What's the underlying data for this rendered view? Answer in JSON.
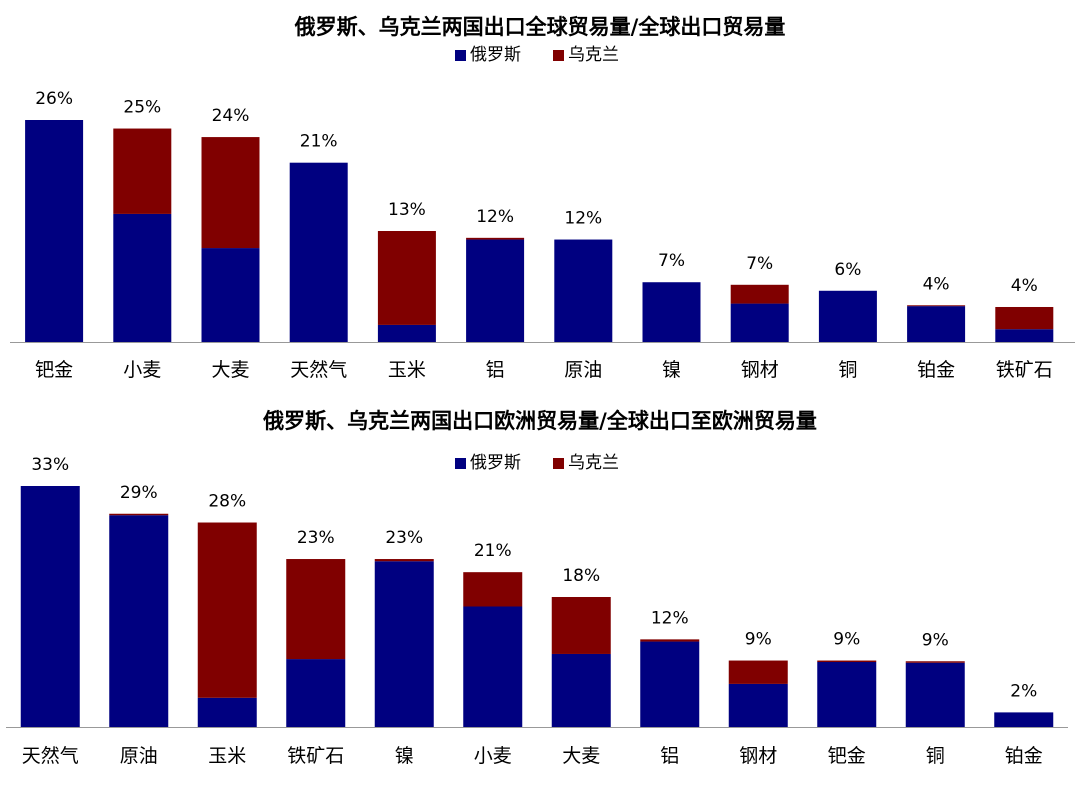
{
  "colors": {
    "russia": "#000080",
    "ukraine": "#800000",
    "axis": "#999999",
    "text": "#000000"
  },
  "chart_data": [
    {
      "type": "bar",
      "stacked": true,
      "title": "俄罗斯、乌克兰两国出口全球贸易量/全球出口贸易量",
      "legend": "top-center",
      "categories": [
        "钯金",
        "小麦",
        "大麦",
        "天然气",
        "玉米",
        "铝",
        "原油",
        "镍",
        "钢材",
        "铜",
        "铂金",
        "铁矿石"
      ],
      "totals_labels": [
        "26%",
        "25%",
        "24%",
        "21%",
        "13%",
        "12%",
        "12%",
        "7%",
        "7%",
        "6%",
        "4%",
        "4%"
      ],
      "ylim": [
        0,
        26
      ],
      "series": [
        {
          "name": "俄罗斯",
          "values": [
            26,
            15,
            11,
            21,
            2,
            12,
            12,
            7,
            4.5,
            6,
            4.2,
            1.5
          ]
        },
        {
          "name": "乌克兰",
          "values": [
            0,
            10,
            13,
            0,
            11,
            0.2,
            0,
            0,
            2.2,
            0,
            0.1,
            2.6
          ]
        }
      ]
    },
    {
      "type": "bar",
      "stacked": true,
      "title": "俄罗斯、乌克兰两国出口欧洲贸易量/全球出口至欧洲贸易量",
      "legend": "top-center",
      "categories": [
        "天然气",
        "原油",
        "玉米",
        "铁矿石",
        "镍",
        "小麦",
        "大麦",
        "铝",
        "钢材",
        "钯金",
        "铜",
        "铂金"
      ],
      "totals_labels": [
        "33%",
        "29%",
        "28%",
        "23%",
        "23%",
        "21%",
        "18%",
        "12%",
        "9%",
        "9%",
        "9%",
        "2%"
      ],
      "ylim": [
        0,
        33
      ],
      "series": [
        {
          "name": "俄罗斯",
          "values": [
            33,
            29,
            4,
            9.3,
            22.7,
            16.5,
            10,
            11.7,
            5.9,
            8.9,
            8.8,
            2
          ]
        },
        {
          "name": "乌克兰",
          "values": [
            0,
            0.2,
            24,
            13.7,
            0.3,
            4.7,
            7.8,
            0.3,
            3.2,
            0.2,
            0.2,
            0
          ]
        }
      ]
    }
  ]
}
